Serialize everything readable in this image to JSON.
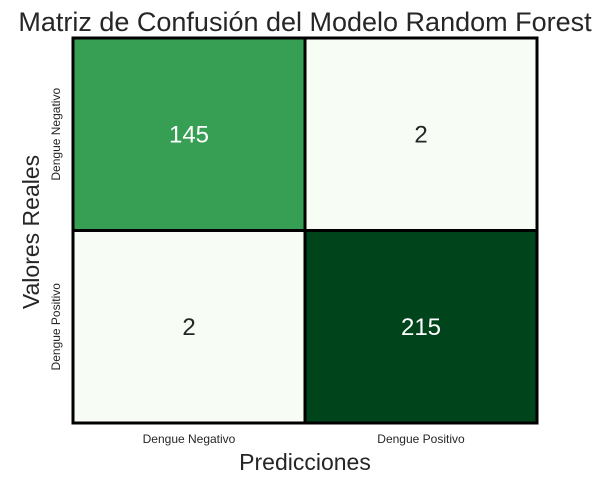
{
  "chart_data": {
    "type": "heatmap",
    "title": "Matriz de Confusión del Modelo Random Forest",
    "xlabel": "Predicciones",
    "ylabel": "Valores Reales",
    "x_categories": [
      "Dengue Negativo",
      "Dengue Positivo"
    ],
    "y_categories": [
      "Dengue Negativo",
      "Dengue Positivo"
    ],
    "values": [
      [
        145,
        2
      ],
      [
        2,
        215
      ]
    ],
    "colormap": "Greens",
    "color_low": "#f7fcf5",
    "color_high": "#00441b",
    "text_color_dark": "#262626",
    "text_color_light": "#ffffff",
    "grid_color": "#000000",
    "colorbar": false
  }
}
